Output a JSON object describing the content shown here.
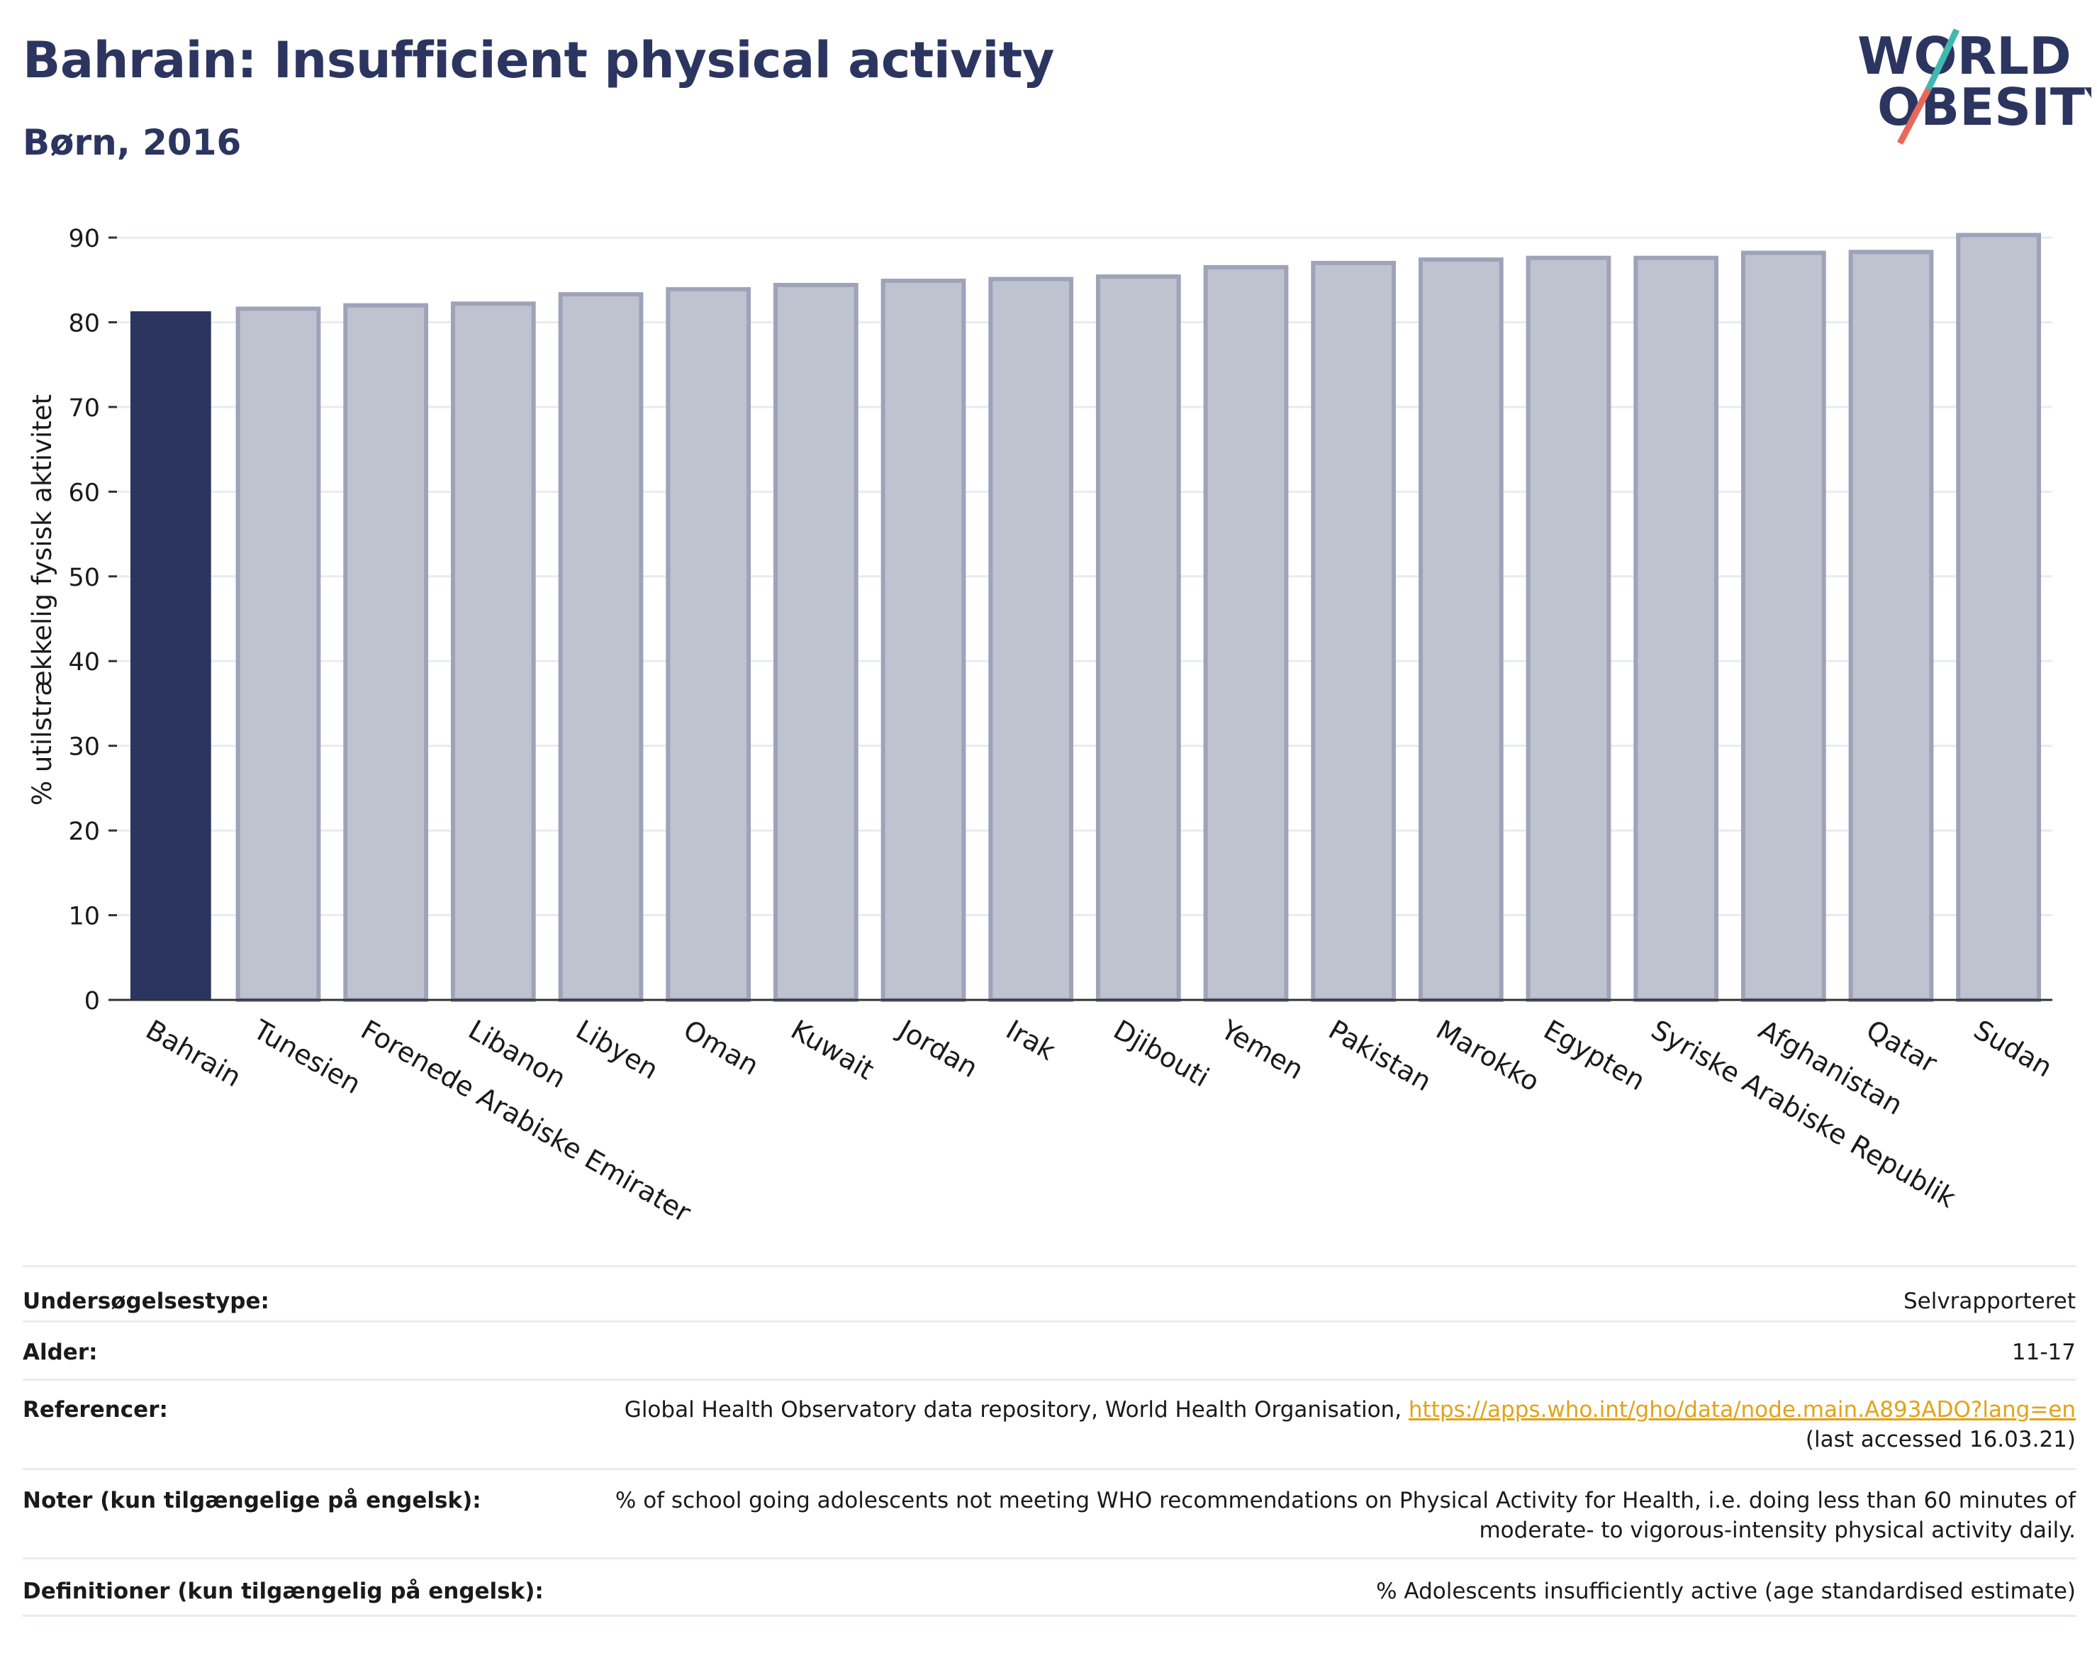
{
  "header": {
    "title": "Bahrain: Insufficient physical activity",
    "subtitle": "Børn, 2016"
  },
  "logo": {
    "line1": "WORLD",
    "line2": "OBESITY",
    "colors": {
      "text": "#2b3560",
      "slash_teal": "#3fb8b0",
      "slash_coral": "#e8685b"
    }
  },
  "chart_data": {
    "type": "bar",
    "categories": [
      "Bahrain",
      "Tunesien",
      "Forenede Arabiske Emirater",
      "Libanon",
      "Libyen",
      "Oman",
      "Kuwait",
      "Jordan",
      "Irak",
      "Djibouti",
      "Yemen",
      "Pakistan",
      "Marokko",
      "Egypten",
      "Syriske Arabiske Republik",
      "Afghanistan",
      "Qatar",
      "Sudan"
    ],
    "values": [
      81.3,
      81.6,
      82.0,
      82.2,
      83.3,
      83.9,
      84.4,
      84.9,
      85.1,
      85.4,
      86.5,
      87.0,
      87.4,
      87.6,
      87.6,
      88.2,
      88.3,
      90.3
    ],
    "highlight": "Bahrain",
    "title": "",
    "xlabel": "",
    "ylabel": "% utilstrækkelig fysisk aktivitet",
    "ylim": [
      0,
      90
    ],
    "yticks": [
      0,
      10,
      20,
      30,
      40,
      50,
      60,
      70,
      80,
      90
    ],
    "grid": true,
    "colors": {
      "highlight": "#2b3560",
      "other_fill": "#bfc2cf",
      "other_stroke": "#9ea3ba",
      "grid": "#e8ebf3",
      "axis": "#333333"
    }
  },
  "info": {
    "survey_type_label": "Undersøgelsestype:",
    "survey_type_value": "Selvrapporteret",
    "age_label": "Alder:",
    "age_value": "11-17",
    "references_label": "Referencer:",
    "references_text": "Global Health Observatory data repository, World Health Organisation, ",
    "references_link": "https://apps.who.int/gho/data/node.main.A893ADO?lang=en",
    "references_accessed": "(last accessed 16.03.21)",
    "notes_label": "Noter (kun tilgængelige på engelsk):",
    "notes_line1": "% of school going adolescents not meeting WHO recommendations on Physical Activity for Health, i.e. doing less than 60 minutes of",
    "notes_line2": "moderate- to vigorous-intensity physical activity daily.",
    "definitions_label": "Definitioner (kun tilgængelig på engelsk):",
    "definitions_value": "% Adolescents insufficiently active (age standardised estimate)"
  }
}
